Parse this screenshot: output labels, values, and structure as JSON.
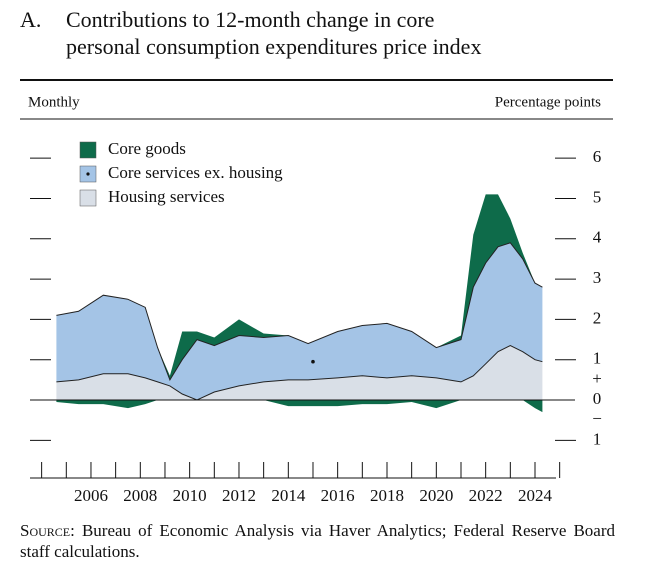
{
  "chart_data": {
    "type": "stacked_area",
    "panel_label": "A.",
    "title_line1": "Contributions to 12-month change in core",
    "title_line2": "personal consumption expenditures price index",
    "subtitle_left": "Monthly",
    "subtitle_right": "Percentage points",
    "sign_labels": [
      "+",
      "−"
    ],
    "source_label": "Source:",
    "source_text": "Bureau of Economic Analysis via Haver Analytics; Federal Reserve Board staff calculations.",
    "x": [
      2004.6,
      2005.5,
      2006.5,
      2007.5,
      2008.2,
      2008.7,
      2009.2,
      2009.7,
      2010.3,
      2011,
      2012,
      2013,
      2014,
      2014.8,
      2016,
      2017,
      2018,
      2019,
      2020,
      2021,
      2021.5,
      2022,
      2022.5,
      2023,
      2023.5,
      2024,
      2024.3
    ],
    "series": [
      {
        "name": "Housing services",
        "color": "#d9dfe7",
        "values": [
          0.45,
          0.5,
          0.65,
          0.65,
          0.55,
          0.45,
          0.35,
          0.15,
          0.0,
          0.2,
          0.35,
          0.45,
          0.5,
          0.5,
          0.55,
          0.6,
          0.55,
          0.6,
          0.55,
          0.45,
          0.6,
          0.9,
          1.2,
          1.35,
          1.2,
          1.0,
          0.95
        ]
      },
      {
        "name": "Core services ex. housing",
        "color": "#a4c4e6",
        "values": [
          1.65,
          1.7,
          1.95,
          1.85,
          1.75,
          0.85,
          0.15,
          0.85,
          1.5,
          1.15,
          1.25,
          1.1,
          1.1,
          0.9,
          1.15,
          1.25,
          1.35,
          1.1,
          0.75,
          1.05,
          2.2,
          2.5,
          2.6,
          2.55,
          2.3,
          1.9,
          1.85
        ]
      },
      {
        "name": "Core goods",
        "color": "#0e6b4a",
        "values": [
          -0.05,
          -0.1,
          -0.1,
          -0.2,
          -0.1,
          0.0,
          0.1,
          0.7,
          0.2,
          0.2,
          0.4,
          0.1,
          -0.15,
          -0.15,
          -0.15,
          -0.1,
          -0.1,
          -0.05,
          -0.2,
          0.1,
          1.3,
          1.7,
          1.3,
          0.6,
          0.15,
          -0.2,
          -0.3
        ]
      }
    ],
    "xlim": [
      2003.5,
      2025.2
    ],
    "xticks": [
      2006,
      2008,
      2010,
      2012,
      2014,
      2016,
      2018,
      2020,
      2022,
      2024
    ],
    "xminor_ticks": [
      2004,
      2005,
      2006,
      2007,
      2008,
      2009,
      2010,
      2011,
      2012,
      2013,
      2014,
      2015,
      2016,
      2017,
      2018,
      2019,
      2020,
      2021,
      2022,
      2023,
      2024,
      2025
    ],
    "ylim": [
      -1.5,
      6.5
    ],
    "yticks": [
      6,
      5,
      4,
      3,
      2,
      1,
      0,
      {
        "value": -1,
        "label": "1"
      }
    ]
  }
}
